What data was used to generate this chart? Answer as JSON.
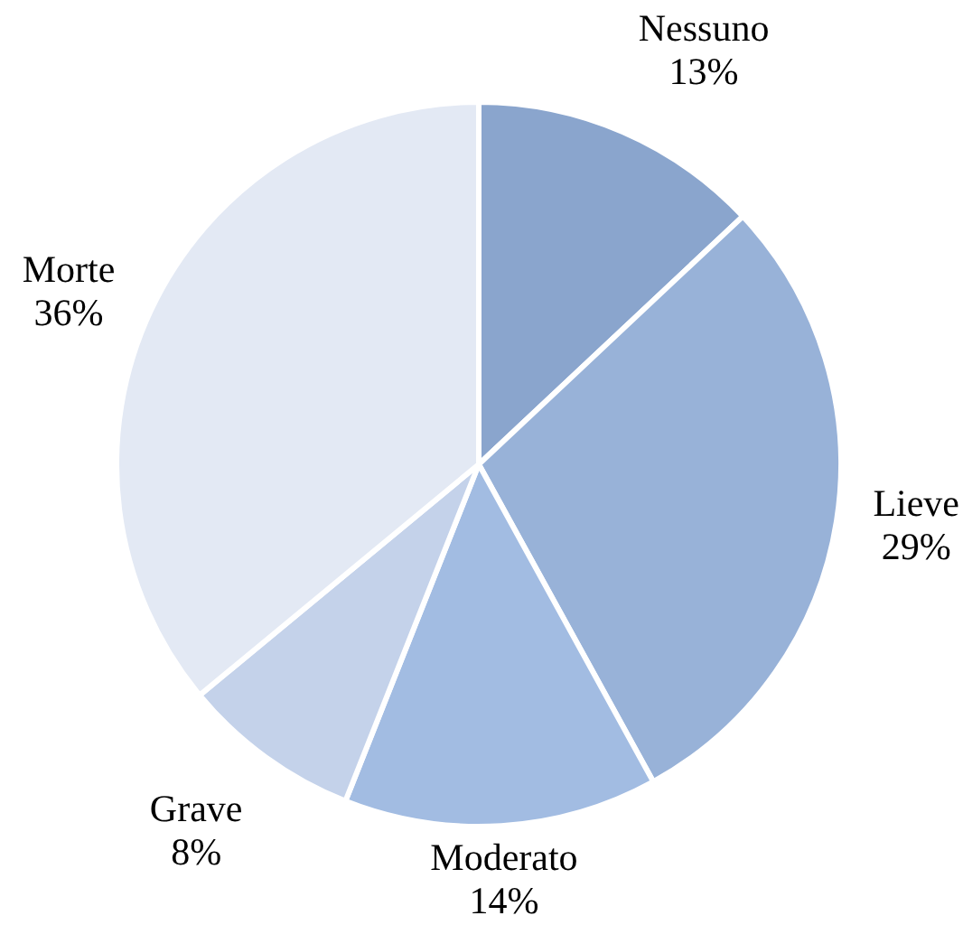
{
  "chart_data": {
    "type": "pie",
    "categories": [
      "Nessuno",
      "Lieve",
      "Moderato",
      "Grave",
      "Morte"
    ],
    "values": [
      13,
      29,
      14,
      8,
      36
    ],
    "value_labels": [
      "13%",
      "29%",
      "14%",
      "8%",
      "36%"
    ],
    "colors": [
      "#8aa5cd",
      "#98b2d8",
      "#a2bce2",
      "#c4d2ea",
      "#e3e9f4"
    ]
  }
}
